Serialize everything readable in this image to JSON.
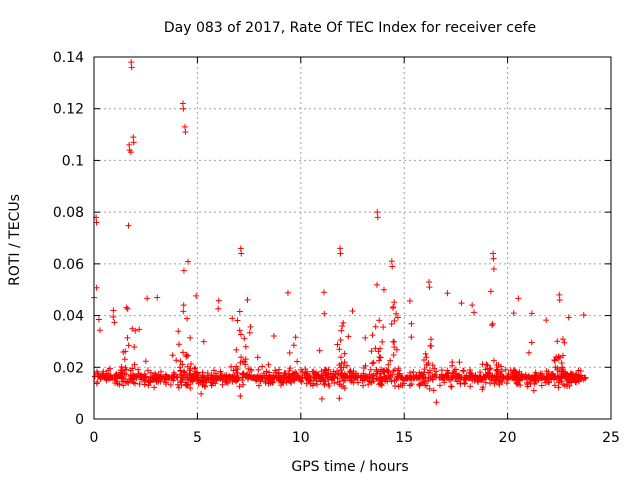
{
  "chart_data": {
    "type": "scatter",
    "title": "Day 083 of 2017, Rate Of TEC Index for receiver cefe",
    "xlabel": "GPS time / hours",
    "ylabel": "ROTI / TECUs",
    "xlim": [
      0,
      25
    ],
    "ylim": [
      0,
      0.14
    ],
    "xticks": [
      0,
      5,
      10,
      15,
      20,
      25
    ],
    "yticks": [
      0,
      0.02,
      0.04,
      0.06,
      0.08,
      0.1,
      0.12,
      0.14
    ],
    "xtick_labels": [
      "0",
      "5",
      "10",
      "15",
      "20",
      "25"
    ],
    "ytick_labels": [
      "0",
      "0.02",
      "0.04",
      "0.06",
      "0.08",
      "0.1",
      "0.12",
      "0.14"
    ],
    "grid": true,
    "marker": "+",
    "series": [
      {
        "name": "ROTI",
        "color": "#ff0000",
        "x_range_hours": [
          0,
          23.8
        ],
        "baseline_median": 0.016,
        "baseline_spread": [
          0.005,
          0.03
        ],
        "peaks": [
          {
            "x": 0.1,
            "y": 0.078
          },
          {
            "x": 1.7,
            "y": 0.106
          },
          {
            "x": 1.8,
            "y": 0.138
          },
          {
            "x": 1.9,
            "y": 0.109
          },
          {
            "x": 4.3,
            "y": 0.122
          },
          {
            "x": 4.4,
            "y": 0.113
          },
          {
            "x": 7.1,
            "y": 0.066
          },
          {
            "x": 11.9,
            "y": 0.066
          },
          {
            "x": 13.7,
            "y": 0.08
          },
          {
            "x": 14.4,
            "y": 0.061
          },
          {
            "x": 16.2,
            "y": 0.053
          },
          {
            "x": 19.3,
            "y": 0.064
          },
          {
            "x": 22.5,
            "y": 0.048
          }
        ]
      }
    ]
  }
}
